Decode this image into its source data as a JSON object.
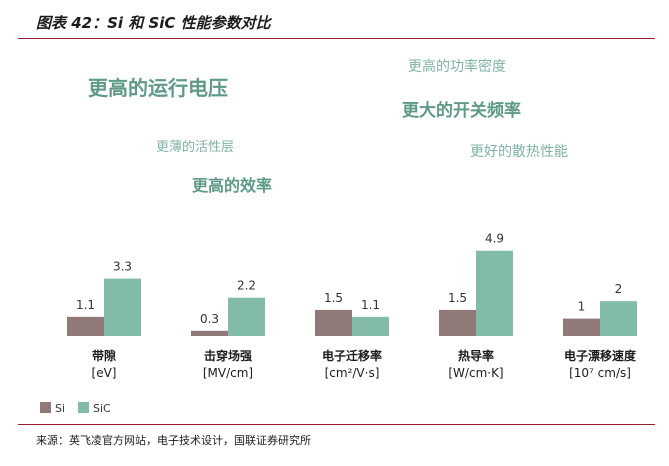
{
  "title": "图表 42：Si 和 SiC 性能参数对比",
  "source": "来源：英飞凌官方网站，电子技术设计，国联证券研究所",
  "phrases": [
    "更高的运行电压",
    "更高的功率密度",
    "更大的开关频率",
    "更薄的活性层",
    "更好的散热性能",
    "更高的效率"
  ],
  "chart_data": {
    "type": "bar",
    "categories": [
      {
        "name": "带隙",
        "unit": "[eV]"
      },
      {
        "name": "击穿场强",
        "unit": "[MV/cm]"
      },
      {
        "name": "电子迁移率",
        "unit": "[cm²/V·s]"
      },
      {
        "name": "热导率",
        "unit": "[W/cm·K]"
      },
      {
        "name": "电子漂移速度",
        "unit": "[10⁷ cm/s]"
      }
    ],
    "series": [
      {
        "name": "Si",
        "values": [
          1.1,
          0.3,
          1.5,
          1.5,
          1
        ],
        "labels": [
          "1.1",
          "0.3",
          "1.5",
          "1.5",
          "1"
        ],
        "color": "#8f7a79"
      },
      {
        "name": "SiC",
        "values": [
          3.3,
          2.2,
          1.1,
          4.9,
          2
        ],
        "labels": [
          "3.3",
          "2.2",
          "1.1",
          "4.9",
          "2"
        ],
        "color": "#82bba7"
      }
    ],
    "legend_position": "bottom-left",
    "grid": false
  }
}
